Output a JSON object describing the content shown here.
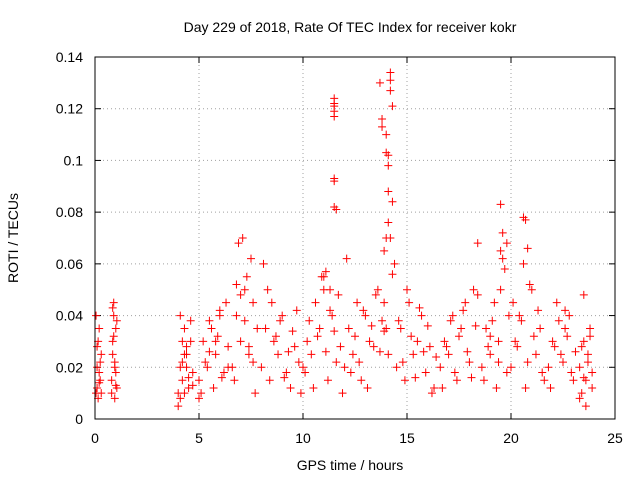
{
  "chart_data": {
    "type": "scatter",
    "title": "Day 229 of 2018, Rate Of TEC Index for receiver kokr",
    "xlabel": "GPS time / hours",
    "ylabel": "ROTI / TECUs",
    "xlim": [
      0,
      25
    ],
    "ylim": [
      0,
      0.14
    ],
    "xticks": [
      0,
      5,
      10,
      15,
      20,
      25
    ],
    "xtick_labels": [
      "0",
      "5",
      "10",
      "15",
      "20",
      "25"
    ],
    "yticks": [
      0,
      0.02,
      0.04,
      0.06,
      0.08,
      0.1,
      0.12,
      0.14
    ],
    "ytick_labels": [
      "0",
      "0.02",
      "0.04",
      "0.06",
      "0.08",
      "0.1",
      "0.12",
      "0.14"
    ],
    "grid": true,
    "marker": "+",
    "color": "#ff0000",
    "series": [
      {
        "name": "ROTI",
        "x": [
          0.05,
          0.1,
          0.15,
          0.2,
          0.25,
          0.3,
          0.05,
          0.1,
          0.15,
          0.2,
          0.25,
          0.3,
          0.1,
          0.2,
          0.8,
          0.85,
          0.9,
          0.95,
          1.0,
          1.05,
          0.8,
          0.85,
          0.9,
          0.95,
          1.0,
          1.05,
          0.85,
          0.95,
          1.0,
          0.9,
          4.0,
          4.1,
          4.2,
          4.3,
          4.4,
          4.5,
          4.6,
          4.7,
          4.0,
          4.1,
          4.2,
          4.3,
          4.4,
          4.5,
          4.6,
          4.7,
          4.2,
          4.4,
          4.1,
          4.3,
          5.0,
          5.2,
          5.4,
          5.6,
          5.8,
          6.0,
          6.2,
          6.4,
          5.1,
          5.3,
          5.5,
          5.7,
          5.9,
          6.1,
          6.3,
          5.0,
          5.5,
          6.0,
          6.4,
          5.8,
          6.6,
          6.8,
          7.0,
          7.2,
          7.4,
          7.6,
          7.8,
          6.7,
          6.9,
          7.1,
          7.3,
          7.5,
          7.7,
          7.0,
          7.2,
          7.4,
          6.8,
          7.6,
          8.0,
          8.2,
          8.4,
          8.6,
          8.8,
          9.0,
          9.2,
          9.4,
          9.6,
          9.8,
          8.1,
          8.3,
          8.5,
          8.7,
          8.9,
          9.1,
          9.3,
          9.5,
          9.7,
          9.9,
          10.0,
          10.2,
          10.4,
          10.6,
          10.8,
          11.0,
          11.2,
          11.4,
          11.6,
          11.8,
          10.1,
          10.3,
          10.5,
          10.7,
          10.9,
          11.1,
          11.3,
          11.5,
          11.7,
          11.9,
          11.5,
          11.5,
          11.5,
          11.5,
          11.5,
          11.5,
          11.5,
          11.5,
          11.6,
          11.0,
          11.1,
          11.3,
          12.0,
          12.2,
          12.4,
          12.6,
          12.8,
          13.0,
          13.2,
          13.4,
          13.6,
          13.8,
          12.1,
          12.3,
          12.5,
          12.7,
          12.9,
          13.1,
          13.3,
          13.5,
          13.7,
          13.9,
          13.7,
          13.8,
          13.8,
          14.0,
          14.0,
          14.1,
          14.1,
          14.1,
          14.2,
          14.2,
          14.2,
          14.3,
          14.3,
          14.1,
          13.9,
          14.0,
          14.2,
          14.3,
          14.4,
          13.9,
          14.0,
          14.1,
          14.5,
          14.7,
          14.9,
          15.1,
          15.3,
          15.5,
          15.7,
          15.9,
          16.1,
          16.3,
          14.6,
          14.8,
          15.0,
          15.2,
          15.4,
          15.6,
          15.8,
          16.0,
          16.2,
          16.4,
          16.6,
          16.8,
          17.0,
          17.2,
          17.4,
          17.6,
          17.8,
          18.0,
          18.2,
          18.4,
          16.7,
          16.9,
          17.1,
          17.3,
          17.5,
          17.7,
          17.9,
          18.1,
          18.3,
          18.4,
          18.6,
          18.8,
          19.0,
          19.2,
          19.4,
          19.5,
          19.6,
          19.7,
          19.8,
          19.9,
          18.7,
          18.9,
          19.1,
          19.3,
          19.5,
          19.5,
          19.6,
          19.4,
          19.0,
          19.8,
          20.0,
          20.2,
          20.4,
          20.6,
          20.7,
          20.8,
          21.0,
          21.2,
          21.4,
          21.6,
          20.1,
          20.3,
          20.5,
          20.6,
          20.7,
          20.8,
          20.9,
          21.1,
          21.3,
          21.5,
          21.8,
          22.0,
          22.2,
          22.4,
          22.6,
          22.8,
          23.0,
          22.3,
          22.5,
          22.7,
          21.9,
          22.1,
          22.9,
          22.6,
          23.1,
          23.3,
          23.4,
          23.5,
          23.6,
          23.7,
          23.8,
          23.9,
          23.3,
          23.5,
          23.7,
          23.9,
          23.4,
          23.6,
          23.8,
          23.5
        ],
        "y": [
          0.01,
          0.02,
          0.008,
          0.035,
          0.015,
          0.025,
          0.04,
          0.012,
          0.03,
          0.018,
          0.022,
          0.01,
          0.028,
          0.014,
          0.01,
          0.03,
          0.045,
          0.02,
          0.035,
          0.012,
          0.015,
          0.025,
          0.04,
          0.008,
          0.018,
          0.038,
          0.043,
          0.022,
          0.013,
          0.032,
          0.01,
          0.02,
          0.015,
          0.035,
          0.025,
          0.012,
          0.03,
          0.018,
          0.005,
          0.04,
          0.022,
          0.01,
          0.028,
          0.016,
          0.038,
          0.013,
          0.03,
          0.02,
          0.008,
          0.025,
          0.015,
          0.03,
          0.02,
          0.035,
          0.025,
          0.04,
          0.018,
          0.028,
          0.01,
          0.022,
          0.038,
          0.012,
          0.032,
          0.016,
          0.045,
          0.008,
          0.026,
          0.042,
          0.02,
          0.03,
          0.02,
          0.04,
          0.03,
          0.05,
          0.025,
          0.045,
          0.035,
          0.015,
          0.068,
          0.07,
          0.055,
          0.062,
          0.01,
          0.048,
          0.038,
          0.028,
          0.052,
          0.022,
          0.02,
          0.035,
          0.015,
          0.03,
          0.025,
          0.04,
          0.018,
          0.012,
          0.028,
          0.022,
          0.06,
          0.05,
          0.045,
          0.032,
          0.038,
          0.016,
          0.026,
          0.034,
          0.042,
          0.01,
          0.02,
          0.03,
          0.025,
          0.045,
          0.035,
          0.05,
          0.015,
          0.04,
          0.022,
          0.028,
          0.018,
          0.038,
          0.012,
          0.032,
          0.055,
          0.026,
          0.042,
          0.034,
          0.048,
          0.01,
          0.119,
          0.122,
          0.124,
          0.121,
          0.117,
          0.093,
          0.092,
          0.082,
          0.081,
          0.055,
          0.057,
          0.05,
          0.02,
          0.035,
          0.025,
          0.045,
          0.015,
          0.04,
          0.03,
          0.028,
          0.05,
          0.038,
          0.062,
          0.018,
          0.032,
          0.022,
          0.042,
          0.012,
          0.036,
          0.048,
          0.026,
          0.034,
          0.13,
          0.113,
          0.116,
          0.11,
          0.103,
          0.102,
          0.098,
          0.088,
          0.134,
          0.131,
          0.127,
          0.121,
          0.084,
          0.076,
          0.065,
          0.07,
          0.07,
          0.056,
          0.06,
          0.045,
          0.035,
          0.025,
          0.02,
          0.035,
          0.015,
          0.045,
          0.025,
          0.03,
          0.04,
          0.018,
          0.028,
          0.012,
          0.038,
          0.022,
          0.05,
          0.032,
          0.016,
          0.043,
          0.026,
          0.036,
          0.01,
          0.024,
          0.02,
          0.03,
          0.025,
          0.04,
          0.015,
          0.035,
          0.045,
          0.022,
          0.05,
          0.068,
          0.012,
          0.028,
          0.038,
          0.018,
          0.032,
          0.042,
          0.026,
          0.016,
          0.036,
          0.048,
          0.02,
          0.035,
          0.025,
          0.045,
          0.03,
          0.083,
          0.072,
          0.058,
          0.068,
          0.04,
          0.015,
          0.028,
          0.038,
          0.012,
          0.05,
          0.065,
          0.062,
          0.022,
          0.032,
          0.018,
          0.02,
          0.03,
          0.04,
          0.078,
          0.077,
          0.066,
          0.05,
          0.025,
          0.035,
          0.015,
          0.045,
          0.028,
          0.038,
          0.06,
          0.012,
          0.022,
          0.052,
          0.032,
          0.042,
          0.018,
          0.02,
          0.03,
          0.045,
          0.025,
          0.035,
          0.04,
          0.015,
          0.038,
          0.022,
          0.032,
          0.012,
          0.028,
          0.018,
          0.042,
          0.026,
          0.02,
          0.01,
          0.03,
          0.015,
          0.025,
          0.035,
          0.012,
          0.008,
          0.048,
          0.022,
          0.018,
          0.028,
          0.005,
          0.032,
          0.016
        ]
      }
    ]
  }
}
